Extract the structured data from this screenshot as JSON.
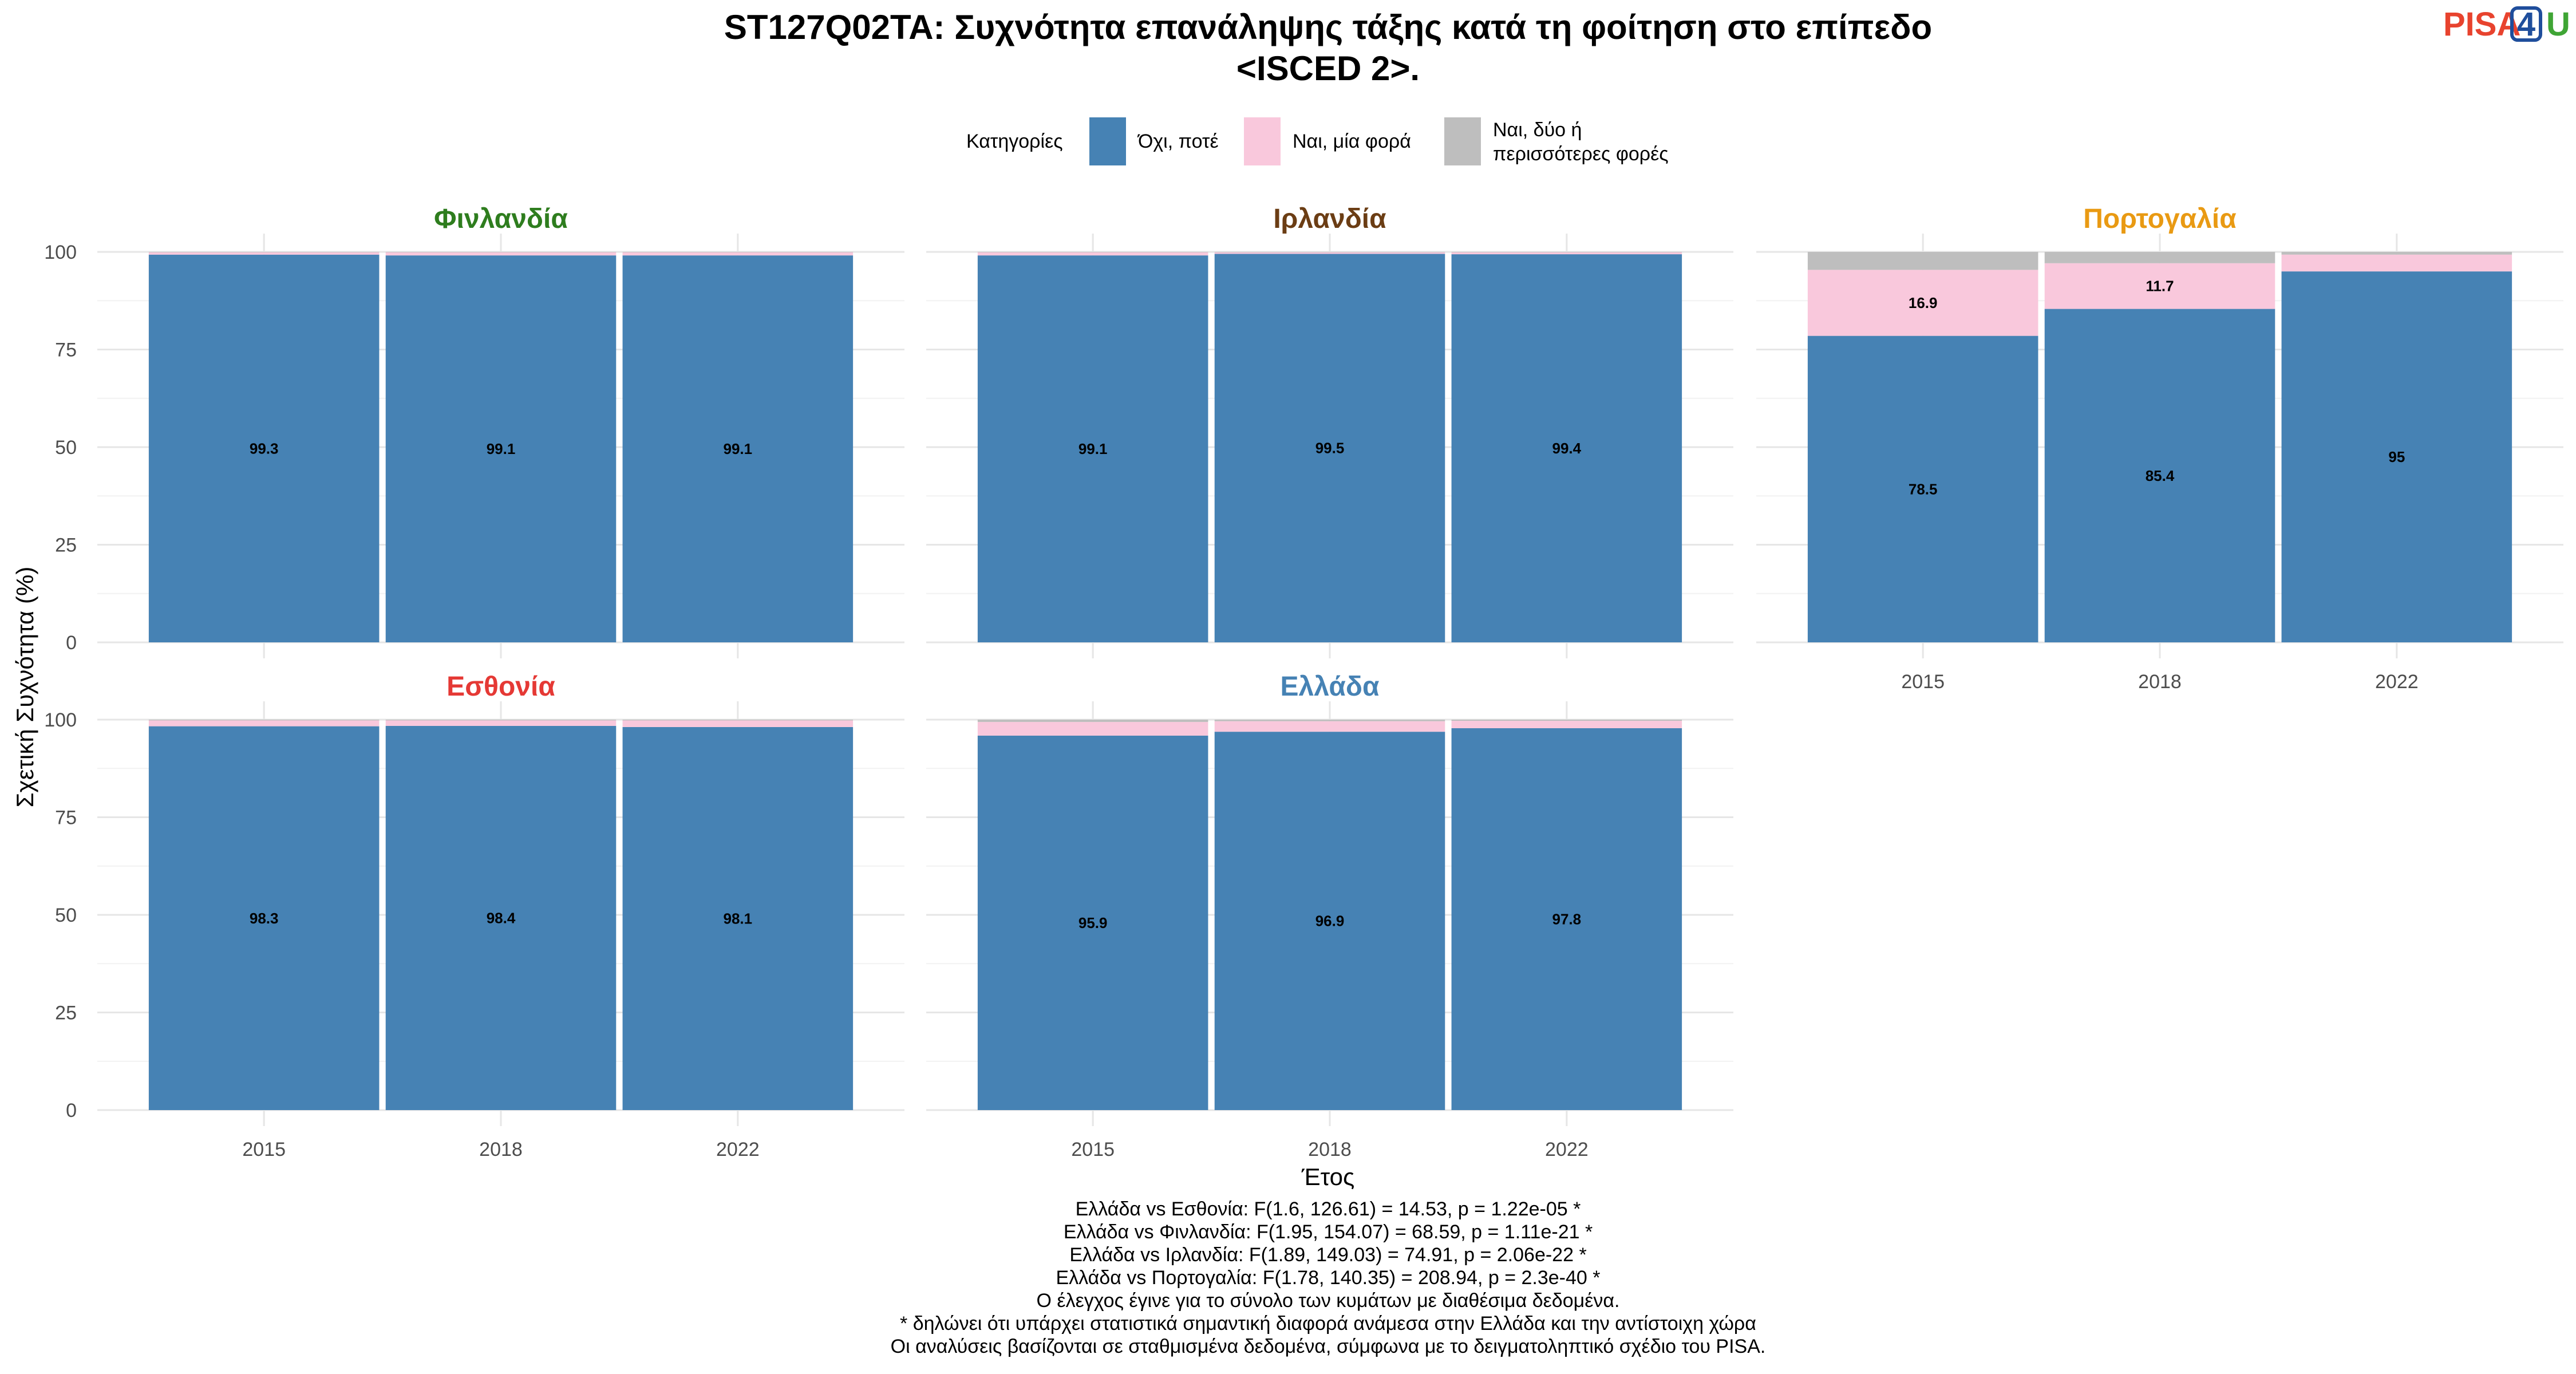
{
  "title_lines": [
    "ST127Q02TA: Συχνότητα επανάληψης τάξης κατά τη φοίτηση στο επίπεδο",
    "<ISCED 2>."
  ],
  "logo": {
    "text": "PISA4U",
    "colors": {
      "pisa": "#e8432e",
      "four": "#1f4e9c",
      "u": "#3fa535"
    }
  },
  "legend": {
    "title": "Κατηγορίες",
    "items": [
      {
        "label_lines": [
          "Όχι, ποτέ"
        ],
        "color": "#4682b4"
      },
      {
        "label_lines": [
          "Ναι, μία φορά"
        ],
        "color": "#f9c8dc"
      },
      {
        "label_lines": [
          "Ναι, δύο ή",
          "περισσότερες φορές"
        ],
        "color": "#bebebe"
      }
    ]
  },
  "xlabel": "Έτος",
  "ylabel": "Σχετική Συχνότητα (%)",
  "footnotes": [
    "Ελλάδα vs Εσθονία: F(1.6, 126.61) = 14.53, p = 1.22e-05 *",
    "Ελλάδα vs Φινλανδία: F(1.95, 154.07) = 68.59, p = 1.11e-21 *",
    "Ελλάδα vs Ιρλανδία: F(1.89, 149.03) = 74.91, p = 2.06e-22 *",
    "Ελλάδα vs Πορτογαλία: F(1.78, 140.35) = 208.94, p = 2.3e-40 *",
    "Ο έλεγχος έγινε για το σύνολο των κυμάτων με διαθέσιμα δεδομένα.",
    "* δηλώνει ότι υπάρχει στατιστικά σημαντική διαφορά ανάμεσα στην Ελλάδα και την αντίστοιχη χώρα",
    "Οι αναλύσεις βασίζονται σε σταθμισμένα δεδομένα, σύμφωνα με το δειγματοληπτικό σχέδιο του PISA."
  ],
  "chart_data": {
    "type": "bar",
    "stacked": true,
    "categories": [
      "2015",
      "2018",
      "2022"
    ],
    "ylim": [
      0,
      100
    ],
    "yticks": [
      0,
      25,
      50,
      75,
      100
    ],
    "grid": true,
    "legend_position": "top",
    "panels": [
      {
        "name": "Φινλανδία",
        "color": "#2e7d1e",
        "series": [
          {
            "name": "Όχι, ποτέ",
            "values": [
              99.3,
              99.1,
              99.1
            ],
            "labels": [
              "99.3",
              "99.1",
              "99.1"
            ]
          },
          {
            "name": "Ναι, μία φορά",
            "values": [
              0.6,
              0.8,
              0.8
            ],
            "labels": [
              "",
              "",
              ""
            ]
          },
          {
            "name": "Ναι, δύο ή περισσότερες φορές",
            "values": [
              0.1,
              0.1,
              0.1
            ],
            "labels": [
              "",
              "",
              ""
            ]
          }
        ]
      },
      {
        "name": "Ιρλανδία",
        "color": "#6b3d14",
        "series": [
          {
            "name": "Όχι, ποτέ",
            "values": [
              99.1,
              99.5,
              99.4
            ],
            "labels": [
              "99.1",
              "99.5",
              "99.4"
            ]
          },
          {
            "name": "Ναι, μία φορά",
            "values": [
              0.8,
              0.4,
              0.5
            ],
            "labels": [
              "",
              "",
              ""
            ]
          },
          {
            "name": "Ναι, δύο ή περισσότερες φορές",
            "values": [
              0.1,
              0.1,
              0.1
            ],
            "labels": [
              "",
              "",
              ""
            ]
          }
        ]
      },
      {
        "name": "Πορτογαλία",
        "color": "#e99a13",
        "series": [
          {
            "name": "Όχι, ποτέ",
            "values": [
              78.5,
              85.4,
              95
            ],
            "labels": [
              "78.5",
              "85.4",
              "95"
            ]
          },
          {
            "name": "Ναι, μία φορά",
            "values": [
              16.9,
              11.7,
              4.3
            ],
            "labels": [
              "16.9",
              "11.7",
              ""
            ]
          },
          {
            "name": "Ναι, δύο ή περισσότερες φορές",
            "values": [
              4.6,
              2.9,
              0.7
            ],
            "labels": [
              "",
              "",
              ""
            ]
          }
        ]
      },
      {
        "name": "Εσθονία",
        "color": "#e53935",
        "series": [
          {
            "name": "Όχι, ποτέ",
            "values": [
              98.3,
              98.4,
              98.1
            ],
            "labels": [
              "98.3",
              "98.4",
              "98.1"
            ]
          },
          {
            "name": "Ναι, μία φορά",
            "values": [
              1.5,
              1.4,
              1.7
            ],
            "labels": [
              "",
              "",
              ""
            ]
          },
          {
            "name": "Ναι, δύο ή περισσότερες φορές",
            "values": [
              0.2,
              0.2,
              0.2
            ],
            "labels": [
              "",
              "",
              ""
            ]
          }
        ]
      },
      {
        "name": "Ελλάδα",
        "color": "#4682b4",
        "series": [
          {
            "name": "Όχι, ποτέ",
            "values": [
              95.9,
              96.9,
              97.8
            ],
            "labels": [
              "95.9",
              "96.9",
              "97.8"
            ]
          },
          {
            "name": "Ναι, μία φορά",
            "values": [
              3.5,
              2.7,
              1.9
            ],
            "labels": [
              "",
              "",
              ""
            ]
          },
          {
            "name": "Ναι, δύο ή περισσότερες φορές",
            "values": [
              0.6,
              0.4,
              0.3
            ],
            "labels": [
              "",
              "",
              ""
            ]
          }
        ]
      }
    ]
  }
}
